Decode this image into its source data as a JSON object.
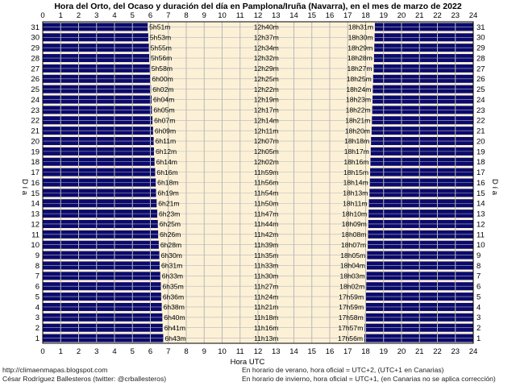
{
  "chart_data": {
    "type": "bar",
    "title": "Hora del Orto, del Ocaso y duración del día en Pamplona/Iruña (Navarra), en el mes de marzo de 2022",
    "xlabel": "Hora UTC",
    "ylabel": "D í a",
    "xlim": [
      0,
      24
    ],
    "ylim": [
      1,
      31
    ],
    "x_ticks": [
      "0",
      "1",
      "2",
      "3",
      "4",
      "5",
      "6",
      "7",
      "8",
      "9",
      "10",
      "11",
      "12",
      "13",
      "14",
      "15",
      "16",
      "17",
      "18",
      "19",
      "20",
      "21",
      "22",
      "23",
      "24"
    ],
    "days": [
      31,
      30,
      29,
      28,
      27,
      26,
      25,
      24,
      23,
      22,
      21,
      20,
      19,
      18,
      17,
      16,
      15,
      14,
      13,
      12,
      11,
      10,
      9,
      8,
      7,
      6,
      5,
      4,
      3,
      2,
      1
    ],
    "series": [
      {
        "name": "Orto",
        "values": [
          "5h51m",
          "5h53m",
          "5h55m",
          "5h56m",
          "5h58m",
          "6h00m",
          "6h02m",
          "6h04m",
          "6h05m",
          "6h07m",
          "6h09m",
          "6h11m",
          "6h12m",
          "6h14m",
          "6h16m",
          "6h18m",
          "6h19m",
          "6h21m",
          "6h23m",
          "6h25m",
          "6h26m",
          "6h28m",
          "6h30m",
          "6h31m",
          "6h33m",
          "6h35m",
          "6h36m",
          "6h38m",
          "6h40m",
          "6h41m",
          "6h43m"
        ]
      },
      {
        "name": "Duración",
        "values": [
          "12h40m",
          "12h37m",
          "12h34m",
          "12h32m",
          "12h29m",
          "12h25m",
          "12h22m",
          "12h19m",
          "12h17m",
          "12h14m",
          "12h11m",
          "12h07m",
          "12h05m",
          "12h02m",
          "11h59m",
          "11h56m",
          "11h54m",
          "11h50m",
          "11h47m",
          "11h44m",
          "11h42m",
          "11h39m",
          "11h35m",
          "11h33m",
          "11h30m",
          "11h27m",
          "11h24m",
          "11h21m",
          "11h18m",
          "11h16m",
          "11h13m"
        ]
      },
      {
        "name": "Ocaso",
        "values": [
          "18h31m",
          "18h30m",
          "18h29m",
          "18h28m",
          "18h27m",
          "18h25m",
          "18h24m",
          "18h23m",
          "18h22m",
          "18h21m",
          "18h20m",
          "18h18m",
          "18h17m",
          "18h16m",
          "18h15m",
          "18h14m",
          "18h13m",
          "18h11m",
          "18h10m",
          "18h09m",
          "18h08m",
          "18h07m",
          "18h05m",
          "18h04m",
          "18h03m",
          "18h02m",
          "17h59m",
          "17h59m",
          "17h58m",
          "17h57m",
          "17h56m"
        ]
      }
    ],
    "grid": true,
    "colors": {
      "night": "#0a0a6e",
      "day": "#fcf1d6",
      "grid": "#b8b8b8"
    }
  },
  "footer": {
    "source_url": "http://climaenmapas.blogspot.com",
    "author": "César Rodríguez Ballesteros (twitter: @crballesteros)",
    "note_summer": "En horario de verano, hora oficial = UTC+2, (UTC+1 en Canarias)",
    "note_winter": "En horario de invierno, hora oficial = UTC+1, (en Canarias no se aplica corrección)"
  }
}
